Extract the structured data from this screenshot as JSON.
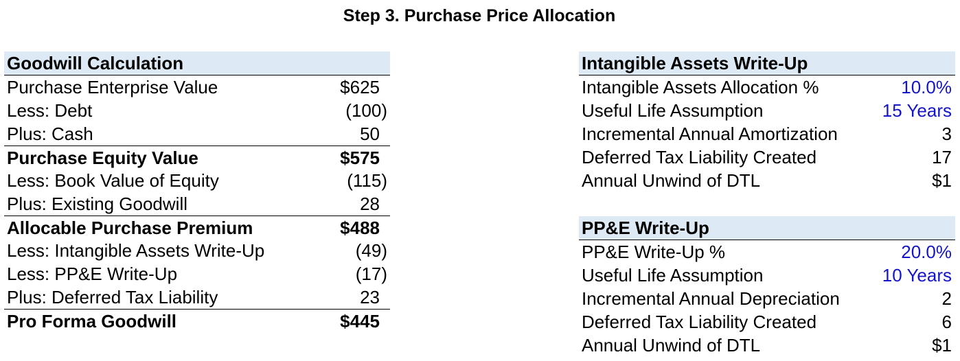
{
  "title": "Step 3. Purchase Price Allocation",
  "colors": {
    "header_fill": "#dde9f5",
    "input_blue": "#1515c8",
    "text": "#000000"
  },
  "goodwill": {
    "header": "Goodwill Calculation",
    "rows": [
      {
        "label": "Purchase Enterprise Value",
        "value": "$625"
      },
      {
        "label": "Less: Debt",
        "value": "(100)"
      },
      {
        "label": "Plus: Cash",
        "value": "50"
      },
      {
        "label": "Purchase Equity Value",
        "value": "$575"
      },
      {
        "label": "Less: Book Value of Equity",
        "value": "(115)"
      },
      {
        "label": "Plus: Existing Goodwill",
        "value": "28"
      },
      {
        "label": "Allocable Purchase Premium",
        "value": "$488"
      },
      {
        "label": "Less: Intangible Assets Write-Up",
        "value": "(49)"
      },
      {
        "label": "Less: PP&E Write-Up",
        "value": "(17)"
      },
      {
        "label": "Plus: Deferred Tax Liability",
        "value": "23"
      },
      {
        "label": "Pro Forma Goodwill",
        "value": "$445"
      }
    ]
  },
  "intangibles": {
    "header": "Intangible Assets Write-Up",
    "rows": [
      {
        "label": "Intangible Assets Allocation %",
        "value": "10.0%"
      },
      {
        "label": "Useful Life Assumption",
        "value": "15 Years"
      },
      {
        "label": "Incremental Annual Amortization",
        "value": "3"
      },
      {
        "label": "Deferred Tax Liability Created",
        "value": "17"
      },
      {
        "label": "Annual Unwind of DTL",
        "value": "$1"
      }
    ]
  },
  "ppe": {
    "header": "PP&E Write-Up",
    "rows": [
      {
        "label": "PP&E Write-Up %",
        "value": "20.0%"
      },
      {
        "label": "Useful Life Assumption",
        "value": "10 Years"
      },
      {
        "label": "Incremental Annual Depreciation",
        "value": "2"
      },
      {
        "label": "Deferred Tax Liability Created",
        "value": "6"
      },
      {
        "label": "Annual Unwind of DTL",
        "value": "$1"
      }
    ]
  }
}
